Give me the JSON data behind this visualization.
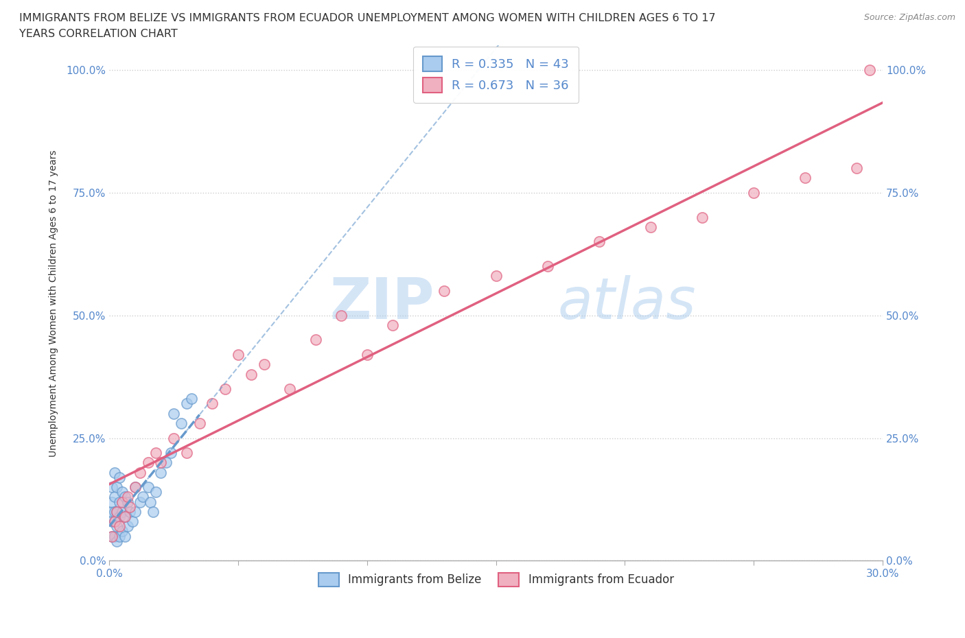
{
  "title_line1": "IMMIGRANTS FROM BELIZE VS IMMIGRANTS FROM ECUADOR UNEMPLOYMENT AMONG WOMEN WITH CHILDREN AGES 6 TO 17",
  "title_line2": "YEARS CORRELATION CHART",
  "source": "Source: ZipAtlas.com",
  "ylabel": "Unemployment Among Women with Children Ages 6 to 17 years",
  "xlim": [
    0,
    0.3
  ],
  "ylim": [
    0,
    1.05
  ],
  "ytick_vals": [
    0.0,
    0.25,
    0.5,
    0.75,
    1.0
  ],
  "ytick_labels": [
    "0.0%",
    "25.0%",
    "50.0%",
    "75.0%",
    "100.0%"
  ],
  "xtick_vals": [
    0.0,
    0.05,
    0.1,
    0.15,
    0.2,
    0.25,
    0.3
  ],
  "xtick_labels": [
    "0.0%",
    "",
    "",
    "",
    "",
    "",
    "30.0%"
  ],
  "belize_color": "#aaccee",
  "ecuador_color": "#f0b0c0",
  "belize_line_color": "#6699cc",
  "ecuador_line_color": "#e06080",
  "R_belize": 0.335,
  "N_belize": 43,
  "R_ecuador": 0.673,
  "N_ecuador": 36,
  "legend_label_belize": "Immigrants from Belize",
  "legend_label_ecuador": "Immigrants from Ecuador",
  "watermark_zip": "ZIP",
  "watermark_atlas": "atlas",
  "background_color": "#ffffff",
  "grid_color": "#cccccc",
  "belize_scatter_x": [
    0.001,
    0.001,
    0.001,
    0.001,
    0.001,
    0.002,
    0.002,
    0.002,
    0.002,
    0.002,
    0.003,
    0.003,
    0.003,
    0.003,
    0.004,
    0.004,
    0.004,
    0.004,
    0.005,
    0.005,
    0.005,
    0.006,
    0.006,
    0.006,
    0.007,
    0.007,
    0.008,
    0.009,
    0.01,
    0.01,
    0.012,
    0.013,
    0.015,
    0.016,
    0.017,
    0.018,
    0.02,
    0.022,
    0.024,
    0.025,
    0.028,
    0.03,
    0.032
  ],
  "belize_scatter_y": [
    0.05,
    0.08,
    0.1,
    0.12,
    0.15,
    0.05,
    0.08,
    0.1,
    0.13,
    0.18,
    0.04,
    0.07,
    0.1,
    0.15,
    0.05,
    0.09,
    0.12,
    0.17,
    0.06,
    0.1,
    0.14,
    0.05,
    0.09,
    0.13,
    0.07,
    0.12,
    0.1,
    0.08,
    0.1,
    0.15,
    0.12,
    0.13,
    0.15,
    0.12,
    0.1,
    0.14,
    0.18,
    0.2,
    0.22,
    0.3,
    0.28,
    0.32,
    0.33
  ],
  "ecuador_scatter_x": [
    0.001,
    0.002,
    0.003,
    0.004,
    0.005,
    0.006,
    0.007,
    0.008,
    0.01,
    0.012,
    0.015,
    0.018,
    0.02,
    0.025,
    0.03,
    0.035,
    0.04,
    0.045,
    0.05,
    0.055,
    0.06,
    0.07,
    0.08,
    0.09,
    0.1,
    0.11,
    0.13,
    0.15,
    0.17,
    0.19,
    0.21,
    0.23,
    0.25,
    0.27,
    0.29,
    0.295
  ],
  "ecuador_scatter_y": [
    0.05,
    0.08,
    0.1,
    0.07,
    0.12,
    0.09,
    0.13,
    0.11,
    0.15,
    0.18,
    0.2,
    0.22,
    0.2,
    0.25,
    0.22,
    0.28,
    0.32,
    0.35,
    0.42,
    0.38,
    0.4,
    0.35,
    0.45,
    0.5,
    0.42,
    0.48,
    0.55,
    0.58,
    0.6,
    0.65,
    0.68,
    0.7,
    0.75,
    0.78,
    0.8,
    1.0
  ]
}
